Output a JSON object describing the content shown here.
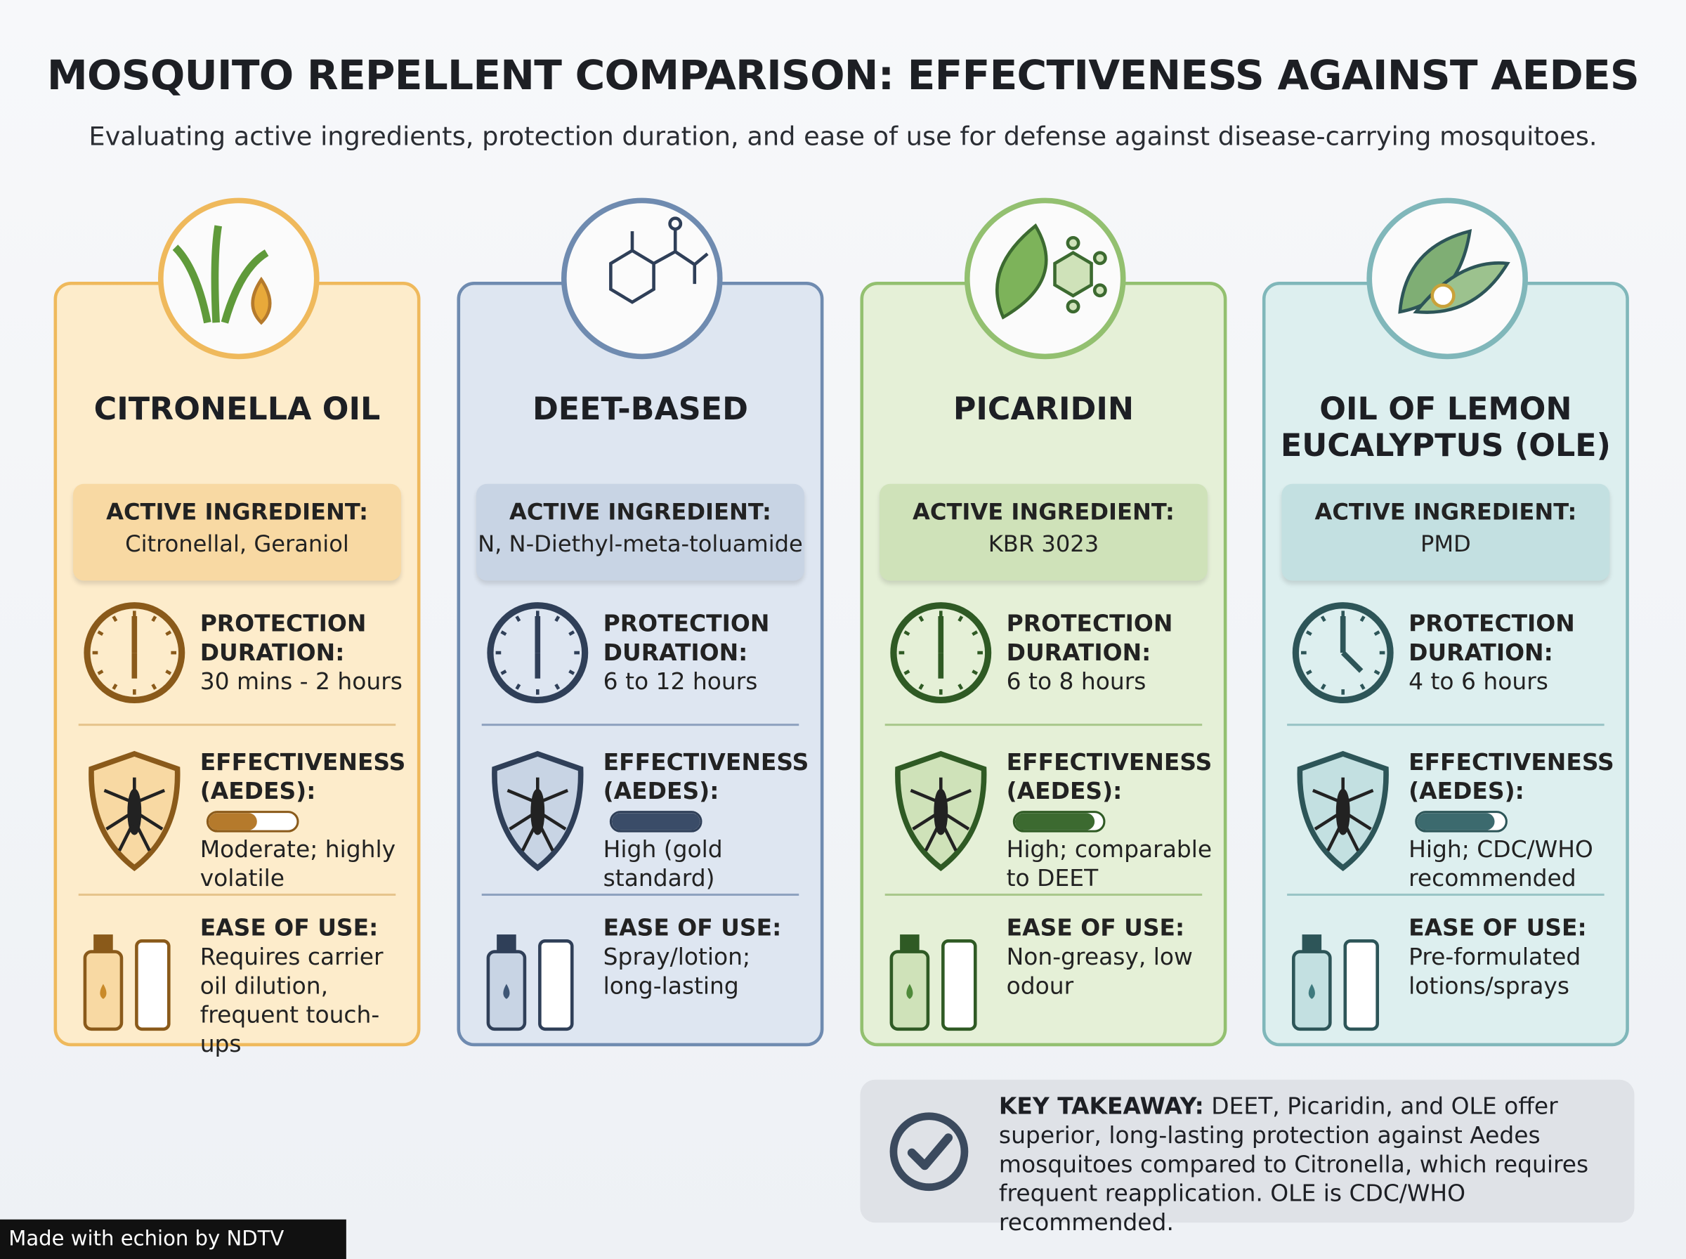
{
  "header": {
    "title": "MOSQUITO REPELLENT COMPARISON: EFFECTIVENESS AGAINST AEDES",
    "subtitle": "Evaluating active ingredients, protection duration, and ease of use for defense against disease-carrying mosquitoes."
  },
  "cards": [
    {
      "name": "CITRONELLA OIL",
      "active_label": "ACTIVE INGREDIENT:",
      "active_value": "Citronellal, Geraniol",
      "duration_label": "PROTECTION DURATION:",
      "duration_value": "30 mins - 2 hours",
      "effectiveness_label": "EFFECTIVENESS (AEDES):",
      "effectiveness_level": 55,
      "effectiveness_value": "Moderate; highly volatile",
      "ease_label": "EASE OF USE:",
      "ease_value": "Requires carrier oil dilution, frequent touch-ups"
    },
    {
      "name": "DEET-BASED",
      "active_label": "ACTIVE INGREDIENT:",
      "active_value": "N, N-Diethyl-meta-toluamide",
      "duration_label": "PROTECTION DURATION:",
      "duration_value": "6 to 12 hours",
      "effectiveness_label": "EFFECTIVENESS (AEDES):",
      "effectiveness_level": 100,
      "effectiveness_value": "High (gold standard)",
      "ease_label": "EASE OF USE:",
      "ease_value": "Spray/lotion; long-lasting"
    },
    {
      "name": "PICARIDIN",
      "active_label": "ACTIVE INGREDIENT:",
      "active_value": "KBR 3023",
      "duration_label": "PROTECTION DURATION:",
      "duration_value": "6 to 8 hours",
      "effectiveness_label": "EFFECTIVENESS (AEDES):",
      "effectiveness_level": 90,
      "effectiveness_value": "High; comparable to DEET",
      "ease_label": "EASE OF USE:",
      "ease_value": "Non-greasy, low odour"
    },
    {
      "name": "OIL OF LEMON EUCALYPTUS (OLE)",
      "active_label": "ACTIVE INGREDIENT:",
      "active_value": "PMD",
      "duration_label": "PROTECTION DURATION:",
      "duration_value": "4 to 6 hours",
      "effectiveness_label": "EFFECTIVENESS (AEDES):",
      "effectiveness_level": 88,
      "effectiveness_value": "High; CDC/WHO recommended",
      "ease_label": "EASE OF USE:",
      "ease_value": "Pre-formulated lotions/sprays"
    }
  ],
  "takeaway": {
    "label": "KEY TAKEAWAY:",
    "text": "DEET, Picaridin, and OLE offer superior, long-lasting protection against Aedes mosquitoes compared to Citronella, which requires frequent reapplication. OLE is CDC/WHO recommended."
  },
  "footer": {
    "text": "Made with echion by NDTV"
  }
}
